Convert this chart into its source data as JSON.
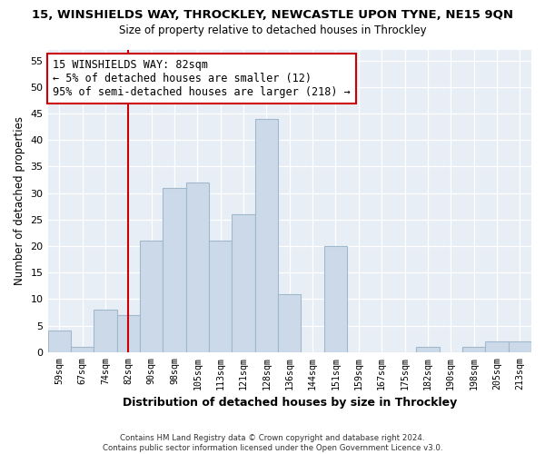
{
  "title": "15, WINSHIELDS WAY, THROCKLEY, NEWCASTLE UPON TYNE, NE15 9QN",
  "subtitle": "Size of property relative to detached houses in Throckley",
  "xlabel": "Distribution of detached houses by size in Throckley",
  "ylabel": "Number of detached properties",
  "bin_labels": [
    "59sqm",
    "67sqm",
    "74sqm",
    "82sqm",
    "90sqm",
    "98sqm",
    "105sqm",
    "113sqm",
    "121sqm",
    "128sqm",
    "136sqm",
    "144sqm",
    "151sqm",
    "159sqm",
    "167sqm",
    "175sqm",
    "182sqm",
    "190sqm",
    "198sqm",
    "205sqm",
    "213sqm"
  ],
  "bar_values": [
    4,
    1,
    8,
    7,
    21,
    31,
    32,
    21,
    26,
    44,
    11,
    0,
    20,
    0,
    0,
    0,
    1,
    0,
    1,
    2,
    2
  ],
  "bar_color": "#ccd9e8",
  "bar_edge_color": "#a0b8cc",
  "background_color": "#e8eef5",
  "vline_x_index": 3,
  "vline_color": "#cc0000",
  "annotation_line1": "15 WINSHIELDS WAY: 82sqm",
  "annotation_line2": "← 5% of detached houses are smaller (12)",
  "annotation_line3": "95% of semi-detached houses are larger (218) →",
  "annotation_box_color": "white",
  "annotation_box_edge_color": "#cc0000",
  "ylim": [
    0,
    57
  ],
  "yticks": [
    0,
    5,
    10,
    15,
    20,
    25,
    30,
    35,
    40,
    45,
    50,
    55
  ],
  "footer_line1": "Contains HM Land Registry data © Crown copyright and database right 2024.",
  "footer_line2": "Contains public sector information licensed under the Open Government Licence v3.0."
}
